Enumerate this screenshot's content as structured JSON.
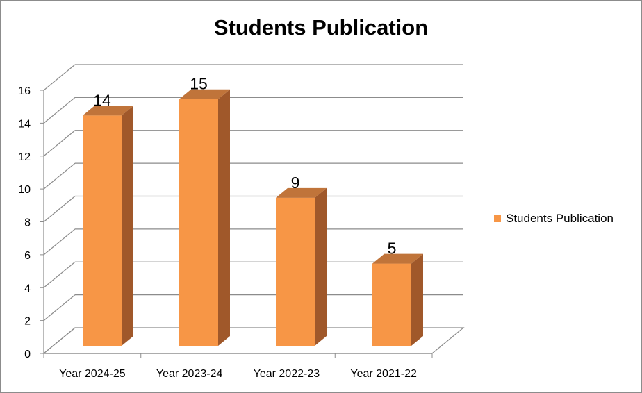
{
  "chart_data": {
    "type": "bar",
    "title": "Students Publication",
    "categories": [
      "Year 2024-25",
      "Year 2023-24",
      "Year 2022-23",
      "Year 2021-22"
    ],
    "series": [
      {
        "name": "Students Publication",
        "values": [
          14,
          15,
          9,
          5
        ],
        "color": "#F79646"
      }
    ],
    "ylim": [
      0,
      16
    ],
    "yticks": [
      0,
      2,
      4,
      6,
      8,
      10,
      12,
      14,
      16
    ],
    "grid": true,
    "legend": "right",
    "style": "3d-column",
    "data_labels": true
  }
}
